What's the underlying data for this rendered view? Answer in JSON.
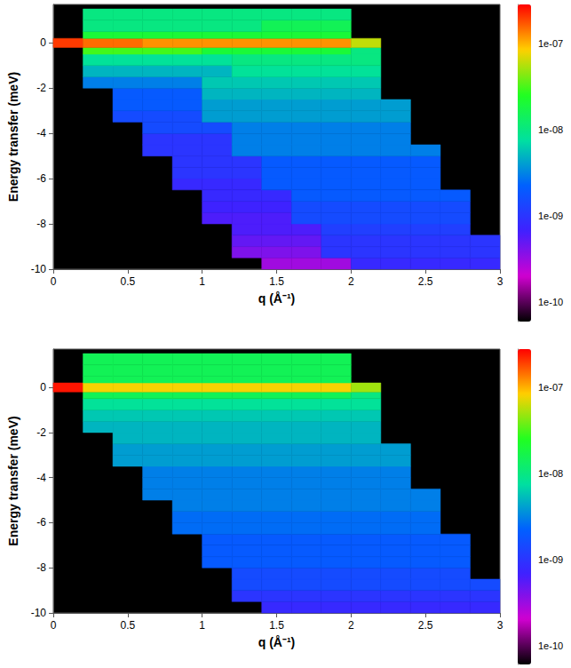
{
  "chart_data": [
    {
      "type": "heatmap",
      "xlabel": "q (Å⁻¹)",
      "ylabel": "Energy transfer (meV)",
      "xlim": [
        0,
        3
      ],
      "xticks": [
        0,
        0.5,
        1,
        1.5,
        2,
        2.5,
        3
      ],
      "ylim": [
        -10,
        1.7
      ],
      "yticks": [
        -10,
        -8,
        -6,
        -4,
        -2,
        0
      ],
      "grid": false,
      "cells": {
        "q_edges": [
          0,
          0.2,
          0.4,
          0.6,
          0.8,
          1,
          1.2,
          1.4,
          1.6,
          1.8,
          2,
          2.2,
          2.4,
          2.6,
          2.8,
          3
        ],
        "E_edges": [
          -10,
          -9.5,
          -9,
          -8.5,
          -8,
          -7.5,
          -7,
          -6.5,
          -6,
          -5.5,
          -5,
          -4.5,
          -4,
          -3.5,
          -3,
          -2.5,
          -2,
          -1.5,
          -1,
          -0.5,
          -0.2,
          0.2,
          0.5,
          1,
          1.5
        ],
        "intensity": [
          [
            null,
            null,
            null,
            null,
            null,
            null,
            null,
            3e-10,
            3e-10,
            3e-10,
            8e-10,
            8e-10,
            8e-10,
            8e-10,
            8e-10
          ],
          [
            null,
            null,
            null,
            null,
            null,
            null,
            4e-10,
            4e-10,
            4e-10,
            1e-09,
            1e-09,
            1e-09,
            1e-09,
            1e-09,
            1e-09
          ],
          [
            null,
            null,
            null,
            null,
            null,
            null,
            5e-10,
            5e-10,
            5e-10,
            1e-09,
            1e-09,
            1e-09,
            1e-09,
            1e-09,
            1e-09
          ],
          [
            null,
            null,
            null,
            null,
            null,
            null,
            6e-10,
            6e-10,
            6e-10,
            1.2e-09,
            1.2e-09,
            1.2e-09,
            1.2e-09,
            1.2e-09,
            null
          ],
          [
            null,
            null,
            null,
            null,
            null,
            6e-10,
            6e-10,
            6e-10,
            1.5e-09,
            1.5e-09,
            1.5e-09,
            1.5e-09,
            1.5e-09,
            1.5e-09,
            null
          ],
          [
            null,
            null,
            null,
            null,
            null,
            7e-10,
            7e-10,
            7e-10,
            1.5e-09,
            1.5e-09,
            1.5e-09,
            1.5e-09,
            1.5e-09,
            1.5e-09,
            null
          ],
          [
            null,
            null,
            null,
            null,
            null,
            8e-10,
            8e-10,
            8e-10,
            2e-09,
            2e-09,
            2e-09,
            2e-09,
            2e-09,
            2e-09,
            null
          ],
          [
            null,
            null,
            null,
            null,
            8e-10,
            8e-10,
            8e-10,
            2e-09,
            2e-09,
            2e-09,
            2e-09,
            2e-09,
            2e-09,
            null,
            null
          ],
          [
            null,
            null,
            null,
            null,
            1e-09,
            1e-09,
            1e-09,
            2e-09,
            2e-09,
            2e-09,
            2e-09,
            2e-09,
            2e-09,
            null,
            null
          ],
          [
            null,
            null,
            null,
            null,
            1e-09,
            1e-09,
            1e-09,
            2e-09,
            2e-09,
            2e-09,
            2e-09,
            2e-09,
            2e-09,
            null,
            null
          ],
          [
            null,
            null,
            null,
            1e-09,
            1e-09,
            1e-09,
            3e-09,
            3e-09,
            3e-09,
            3e-09,
            3e-09,
            3e-09,
            3e-09,
            null,
            null
          ],
          [
            null,
            null,
            null,
            1e-09,
            1e-09,
            1e-09,
            3e-09,
            3e-09,
            3e-09,
            3e-09,
            3e-09,
            3e-09,
            null,
            null,
            null
          ],
          [
            null,
            null,
            null,
            1.5e-09,
            1.5e-09,
            1.5e-09,
            3e-09,
            3e-09,
            3e-09,
            3e-09,
            3e-09,
            3e-09,
            null,
            null,
            null
          ],
          [
            null,
            null,
            1.5e-09,
            1.5e-09,
            1.5e-09,
            4e-09,
            4e-09,
            4e-09,
            4e-09,
            4e-09,
            4e-09,
            4e-09,
            null,
            null,
            null
          ],
          [
            null,
            null,
            2e-09,
            2e-09,
            2e-09,
            4e-09,
            4e-09,
            4e-09,
            4e-09,
            4e-09,
            4e-09,
            4e-09,
            null,
            null,
            null
          ],
          [
            null,
            null,
            2e-09,
            2e-09,
            2e-09,
            5e-09,
            5e-09,
            5e-09,
            5e-09,
            5e-09,
            5e-09,
            null,
            null,
            null,
            null
          ],
          [
            null,
            3e-09,
            3e-09,
            3e-09,
            3e-09,
            6e-09,
            6e-09,
            6e-09,
            6e-09,
            6e-09,
            6e-09,
            null,
            null,
            null,
            null
          ],
          [
            null,
            5e-09,
            5e-09,
            5e-09,
            5e-09,
            5e-09,
            8e-09,
            8e-09,
            8e-09,
            8e-09,
            8e-09,
            null,
            null,
            null,
            null
          ],
          [
            null,
            8e-09,
            8e-09,
            8e-09,
            8e-09,
            8e-09,
            1e-08,
            1e-08,
            1e-08,
            1e-08,
            1e-08,
            null,
            null,
            null,
            null
          ],
          [
            null,
            3e-08,
            3e-08,
            3e-08,
            3e-08,
            2e-08,
            2e-08,
            2e-08,
            2e-08,
            2e-08,
            1e-08,
            null,
            null,
            null,
            null
          ],
          [
            2e-07,
            1.5e-07,
            1.5e-07,
            1.2e-07,
            1.2e-07,
            1.2e-07,
            1.2e-07,
            1.2e-07,
            1.2e-07,
            1.2e-07,
            6e-08,
            null,
            null,
            null,
            null
          ],
          [
            null,
            2e-08,
            2e-08,
            2e-08,
            2e-08,
            2e-08,
            2e-08,
            2e-08,
            2e-08,
            2e-08,
            null,
            null,
            null,
            null,
            null
          ],
          [
            null,
            1e-08,
            1e-08,
            1e-08,
            1e-08,
            1e-08,
            1e-08,
            1.5e-08,
            1.5e-08,
            1.5e-08,
            null,
            null,
            null,
            null,
            null
          ],
          [
            null,
            1e-08,
            1e-08,
            1e-08,
            1e-08,
            1e-08,
            1e-08,
            1e-08,
            1e-08,
            1e-08,
            null,
            null,
            null,
            null,
            null
          ]
        ]
      },
      "colorbar": {
        "range": [
          6e-11,
          2.8e-07
        ],
        "log": true,
        "ticks": [
          {
            "value": 1e-07,
            "label": "1e-07"
          },
          {
            "value": 1e-08,
            "label": "1e-08"
          },
          {
            "value": 1e-09,
            "label": "1e-09"
          },
          {
            "value": 1e-10,
            "label": "1e-10"
          }
        ]
      }
    },
    {
      "type": "heatmap",
      "xlabel": "q (Å⁻¹)",
      "ylabel": "Energy transfer (meV)",
      "xlim": [
        0,
        3
      ],
      "xticks": [
        0,
        0.5,
        1,
        1.5,
        2,
        2.5,
        3
      ],
      "ylim": [
        -10,
        1.7
      ],
      "yticks": [
        -10,
        -8,
        -6,
        -4,
        -2,
        0
      ],
      "grid": false,
      "cells": {
        "q_edges": [
          0,
          0.2,
          0.4,
          0.6,
          0.8,
          1,
          1.2,
          1.4,
          1.6,
          1.8,
          2,
          2.2,
          2.4,
          2.6,
          2.8,
          3
        ],
        "E_edges": [
          -10,
          -9.5,
          -9,
          -8.5,
          -8,
          -7.5,
          -7,
          -6.5,
          -6,
          -5.5,
          -5,
          -4.5,
          -4,
          -3.5,
          -3,
          -2.5,
          -2,
          -1.5,
          -1,
          -0.5,
          -0.2,
          0.2,
          0.5,
          1,
          1.5
        ],
        "intensity": [
          [
            null,
            null,
            null,
            null,
            null,
            null,
            null,
            8e-10,
            8e-10,
            8e-10,
            8e-10,
            8e-10,
            8e-10,
            8e-10,
            8e-10
          ],
          [
            null,
            null,
            null,
            null,
            null,
            null,
            1e-09,
            1e-09,
            1e-09,
            1e-09,
            1e-09,
            1e-09,
            1e-09,
            1e-09,
            1e-09
          ],
          [
            null,
            null,
            null,
            null,
            null,
            null,
            1.5e-09,
            1.5e-09,
            1.5e-09,
            1.5e-09,
            1.5e-09,
            1.5e-09,
            1.5e-09,
            1.5e-09,
            1.5e-09
          ],
          [
            null,
            null,
            null,
            null,
            null,
            null,
            1.5e-09,
            1.5e-09,
            1.5e-09,
            1.5e-09,
            1.5e-09,
            1.5e-09,
            1.5e-09,
            1.5e-09,
            null
          ],
          [
            null,
            null,
            null,
            null,
            null,
            2e-09,
            2e-09,
            2e-09,
            2e-09,
            2e-09,
            2e-09,
            2e-09,
            2e-09,
            2e-09,
            null
          ],
          [
            null,
            null,
            null,
            null,
            null,
            2e-09,
            2e-09,
            2e-09,
            2e-09,
            2e-09,
            2e-09,
            2e-09,
            2e-09,
            2e-09,
            null
          ],
          [
            null,
            null,
            null,
            null,
            null,
            2e-09,
            2e-09,
            2e-09,
            2e-09,
            2e-09,
            2e-09,
            2e-09,
            2e-09,
            2e-09,
            null
          ],
          [
            null,
            null,
            null,
            null,
            2.5e-09,
            2.5e-09,
            2.5e-09,
            2.5e-09,
            2.5e-09,
            2.5e-09,
            2.5e-09,
            2.5e-09,
            2.5e-09,
            null,
            null
          ],
          [
            null,
            null,
            null,
            null,
            2.5e-09,
            2.5e-09,
            2.5e-09,
            2.5e-09,
            2.5e-09,
            2.5e-09,
            2.5e-09,
            2.5e-09,
            2.5e-09,
            null,
            null
          ],
          [
            null,
            null,
            null,
            null,
            3e-09,
            3e-09,
            3e-09,
            3e-09,
            3e-09,
            3e-09,
            3e-09,
            3e-09,
            3e-09,
            null,
            null
          ],
          [
            null,
            null,
            null,
            3e-09,
            3e-09,
            3e-09,
            3e-09,
            3e-09,
            3e-09,
            3e-09,
            3e-09,
            3e-09,
            3e-09,
            null,
            null
          ],
          [
            null,
            null,
            null,
            3e-09,
            3e-09,
            3e-09,
            3e-09,
            3e-09,
            3e-09,
            3e-09,
            3e-09,
            3e-09,
            null,
            null,
            null
          ],
          [
            null,
            null,
            null,
            3e-09,
            3e-09,
            3e-09,
            3e-09,
            3e-09,
            3e-09,
            3e-09,
            3e-09,
            3e-09,
            null,
            null,
            null
          ],
          [
            null,
            null,
            4e-09,
            4e-09,
            4e-09,
            4e-09,
            4e-09,
            4e-09,
            4e-09,
            4e-09,
            4e-09,
            4e-09,
            null,
            null,
            null
          ],
          [
            null,
            null,
            4e-09,
            4e-09,
            4e-09,
            4e-09,
            4e-09,
            4e-09,
            4e-09,
            4e-09,
            4e-09,
            4e-09,
            null,
            null,
            null
          ],
          [
            null,
            null,
            5e-09,
            5e-09,
            5e-09,
            5e-09,
            5e-09,
            5e-09,
            5e-09,
            5e-09,
            5e-09,
            null,
            null,
            null,
            null
          ],
          [
            null,
            5e-09,
            5e-09,
            5e-09,
            5e-09,
            5e-09,
            5e-09,
            5e-09,
            5e-09,
            5e-09,
            5e-09,
            null,
            null,
            null,
            null
          ],
          [
            null,
            6e-09,
            6e-09,
            6e-09,
            6e-09,
            6e-09,
            6e-09,
            6e-09,
            6e-09,
            6e-09,
            6e-09,
            null,
            null,
            null,
            null
          ],
          [
            null,
            8e-09,
            8e-09,
            8e-09,
            8e-09,
            8e-09,
            8e-09,
            8e-09,
            8e-09,
            8e-09,
            8e-09,
            null,
            null,
            null,
            null
          ],
          [
            null,
            1.5e-08,
            1.5e-08,
            1.5e-08,
            1.5e-08,
            1.5e-08,
            1.5e-08,
            1.5e-08,
            1.5e-08,
            1.5e-08,
            1e-08,
            null,
            null,
            null,
            null
          ],
          [
            2.5e-07,
            8e-08,
            8e-08,
            8e-08,
            8e-08,
            8e-08,
            8e-08,
            8e-08,
            8e-08,
            8e-08,
            5e-08,
            null,
            null,
            null,
            null
          ],
          [
            null,
            1.5e-08,
            1.5e-08,
            1.5e-08,
            1.5e-08,
            1.5e-08,
            1.5e-08,
            1.5e-08,
            1.5e-08,
            1.5e-08,
            null,
            null,
            null,
            null,
            null
          ],
          [
            null,
            1.5e-08,
            1.5e-08,
            1.5e-08,
            1.5e-08,
            1.5e-08,
            1.5e-08,
            1.5e-08,
            1.5e-08,
            1.5e-08,
            null,
            null,
            null,
            null,
            null
          ],
          [
            null,
            1.5e-08,
            1.5e-08,
            1.5e-08,
            1.5e-08,
            1.5e-08,
            1.5e-08,
            1.5e-08,
            1.5e-08,
            1.5e-08,
            null,
            null,
            null,
            null,
            null
          ]
        ]
      },
      "colorbar": {
        "range": [
          6e-11,
          2.8e-07
        ],
        "log": true,
        "ticks": [
          {
            "value": 1e-07,
            "label": "1e-07"
          },
          {
            "value": 1e-08,
            "label": "1e-08"
          },
          {
            "value": 1e-09,
            "label": "1e-09"
          },
          {
            "value": 1e-10,
            "label": "1e-10"
          }
        ]
      }
    }
  ]
}
